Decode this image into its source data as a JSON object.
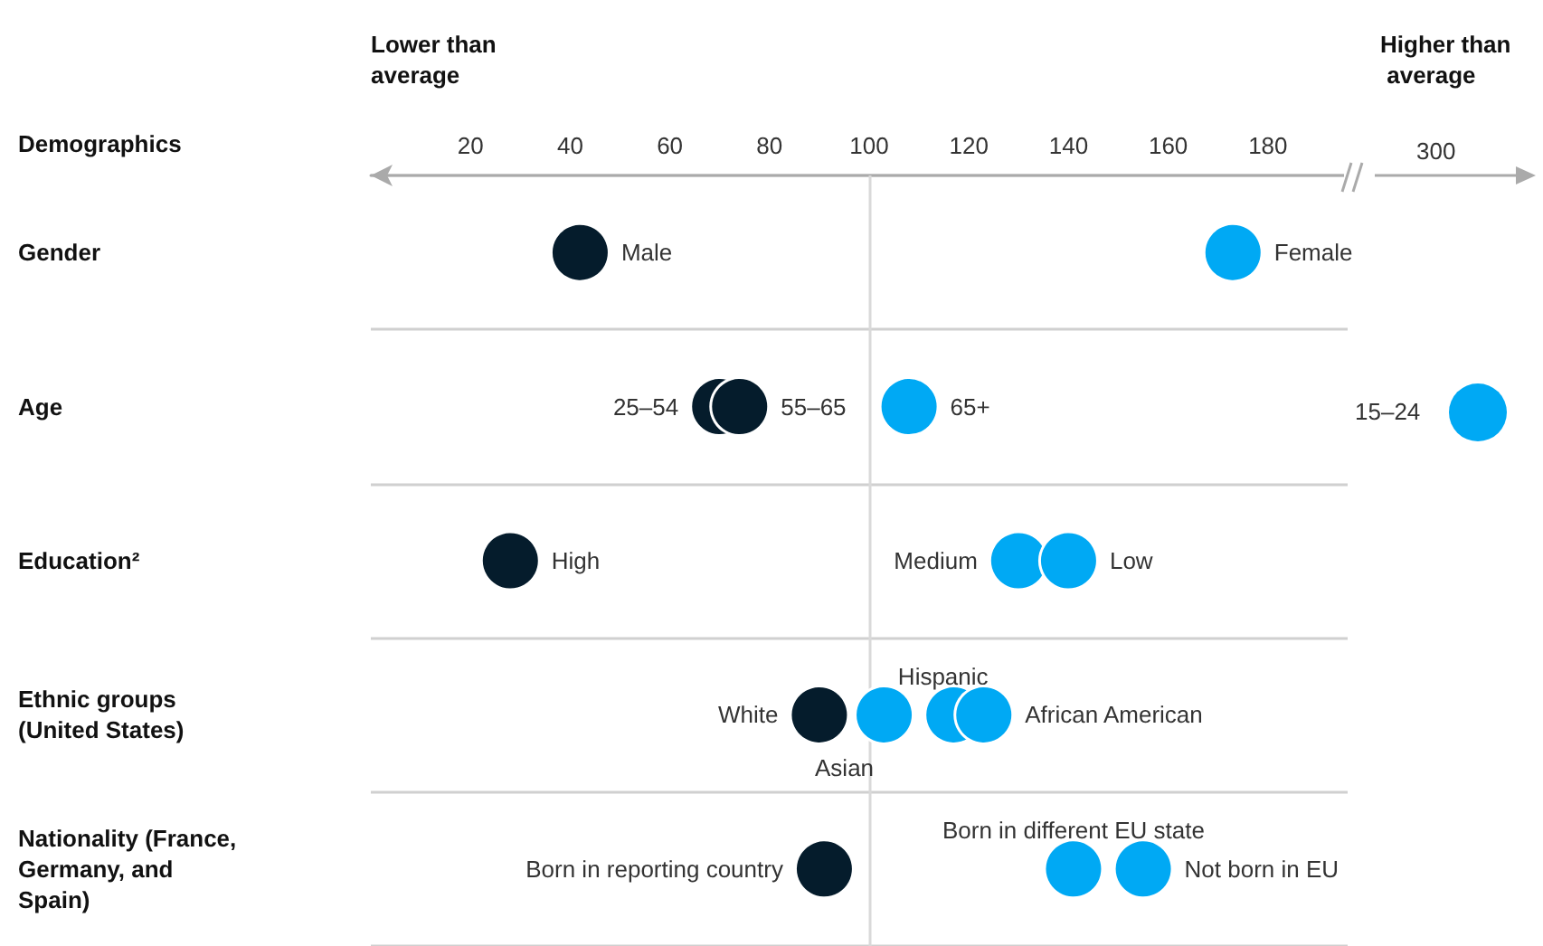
{
  "chart_data": [
    {
      "type": "scatter",
      "ylabel": "Demographics",
      "annotations": [
        "Lower than average"
      ],
      "categories": [
        "Gender",
        "Age",
        "Education²",
        "Ethnic groups (United States)",
        "Nationality (France, Germany, and Spain)"
      ],
      "orientation": "horizontal",
      "xlim": [
        0,
        196
      ],
      "xticks": [
        20,
        40,
        60,
        80,
        100,
        120,
        140,
        160,
        180
      ],
      "grid": "y",
      "legend": false,
      "marker": "circle",
      "ref_lines": [
        {
          "axis": "x",
          "value": 100,
          "color": "#d9d9d9"
        }
      ],
      "series": [
        {
          "name": "Male",
          "color": "#051c2c",
          "values": [
            42,
            null,
            null,
            null,
            null
          ]
        },
        {
          "name": "Female",
          "color": "#00a9f4",
          "values": [
            173,
            null,
            null,
            null,
            null
          ]
        },
        {
          "name": "25–54",
          "color": "#051c2c",
          "values": [
            null,
            70,
            null,
            null,
            null
          ]
        },
        {
          "name": "55–65",
          "color": "#051c2c",
          "values": [
            null,
            74,
            null,
            null,
            null
          ]
        },
        {
          "name": "65+",
          "color": "#00a9f4",
          "values": [
            null,
            108,
            null,
            null,
            null
          ]
        },
        {
          "name": "High",
          "color": "#051c2c",
          "values": [
            null,
            null,
            28,
            null,
            null
          ]
        },
        {
          "name": "Medium",
          "color": "#00a9f4",
          "values": [
            null,
            null,
            130,
            null,
            null
          ]
        },
        {
          "name": "Low",
          "color": "#00a9f4",
          "values": [
            null,
            null,
            140,
            null,
            null
          ]
        },
        {
          "name": "White",
          "color": "#051c2c",
          "values": [
            null,
            null,
            null,
            90,
            null
          ]
        },
        {
          "name": "Asian",
          "color": "#00a9f4",
          "values": [
            null,
            null,
            null,
            103,
            null
          ]
        },
        {
          "name": "Hispanic",
          "color": "#00a9f4",
          "values": [
            null,
            null,
            null,
            117,
            null
          ]
        },
        {
          "name": "African American",
          "color": "#00a9f4",
          "values": [
            null,
            null,
            null,
            123,
            null
          ]
        },
        {
          "name": "Born in reporting country",
          "color": "#051c2c",
          "values": [
            null,
            null,
            null,
            null,
            91
          ]
        },
        {
          "name": "Born in different EU state",
          "color": "#00a9f4",
          "values": [
            null,
            null,
            null,
            null,
            141
          ]
        },
        {
          "name": "Not born in EU",
          "color": "#00a9f4",
          "values": [
            null,
            null,
            null,
            null,
            155
          ]
        }
      ]
    },
    {
      "type": "other",
      "annotations": [
        "Higher than average",
        "300",
        "15–24"
      ]
    }
  ]
}
